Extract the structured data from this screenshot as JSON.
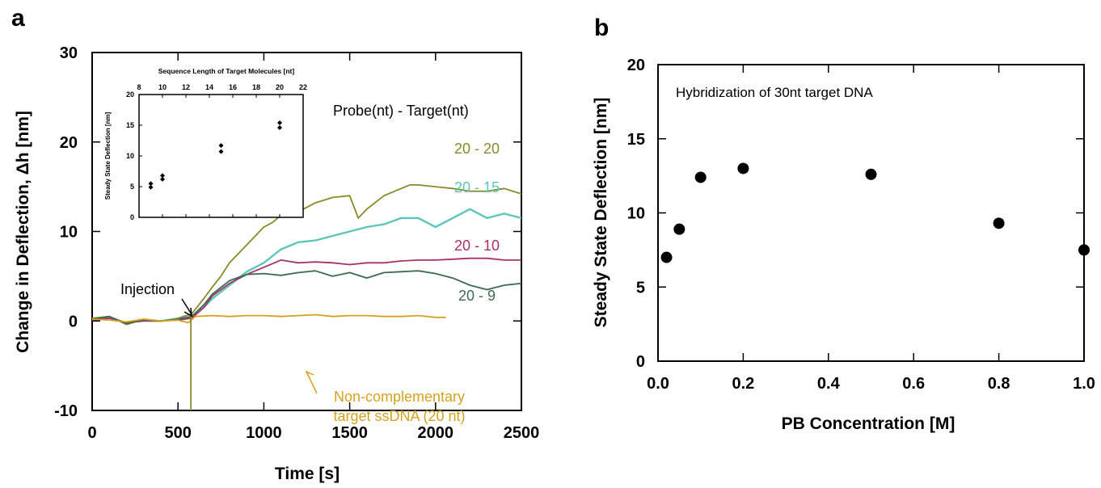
{
  "panels": {
    "a": "a",
    "b": "b"
  },
  "chart_data": [
    {
      "panel": "a",
      "type": "line",
      "title": "",
      "xlabel": "Time [s]",
      "ylabel": "Change in Deflection, Δh [nm]",
      "xlim": [
        0,
        2500
      ],
      "ylim": [
        -10,
        30
      ],
      "xticks": [
        "0",
        "500",
        "1000",
        "1500",
        "2000",
        "2500"
      ],
      "yticks": [
        "-10",
        "0",
        "10",
        "20",
        "30"
      ],
      "header_label": "Probe(nt) - Target(nt)",
      "injection": {
        "label": "Injection",
        "x": 575
      },
      "annotation": "Non-complementary target ssDNA (20 nt)",
      "series": [
        {
          "name": "20 - 20",
          "color": "#8a8a2a",
          "x": [
            0,
            100,
            200,
            300,
            400,
            500,
            580,
            650,
            700,
            750,
            800,
            900,
            1000,
            1050,
            1100,
            1200,
            1300,
            1400,
            1500,
            1550,
            1600,
            1700,
            1800,
            1850,
            1900,
            2000,
            2100,
            2200,
            2300,
            2400,
            2500
          ],
          "y": [
            0.3,
            0.5,
            -0.4,
            0.2,
            0,
            0.3,
            0.8,
            2.5,
            3.8,
            5,
            6.5,
            8.5,
            10.5,
            11,
            11.8,
            12.2,
            13.2,
            13.8,
            14,
            11.5,
            12.5,
            14,
            14.8,
            15.2,
            15.2,
            15,
            14.8,
            14.5,
            14.5,
            14.8,
            14.2
          ]
        },
        {
          "name": "20 - 15",
          "color": "#5cc6bc",
          "x": [
            0,
            100,
            200,
            300,
            400,
            500,
            580,
            650,
            700,
            800,
            900,
            1000,
            1100,
            1200,
            1300,
            1400,
            1500,
            1600,
            1700,
            1800,
            1900,
            2000,
            2100,
            2200,
            2300,
            2400,
            2500
          ],
          "y": [
            0.2,
            0.4,
            -0.2,
            0.1,
            0,
            0.2,
            0.5,
            1.5,
            2.5,
            4,
            5.5,
            6.5,
            8,
            8.8,
            9,
            9.5,
            10,
            10.5,
            10.8,
            11.5,
            11.5,
            10.5,
            11.5,
            12.5,
            11.5,
            12,
            11.5
          ]
        },
        {
          "name": "20 - 10",
          "color": "#a8316a",
          "x": [
            0,
            100,
            200,
            300,
            400,
            500,
            580,
            650,
            700,
            800,
            900,
            1000,
            1100,
            1200,
            1300,
            1400,
            1500,
            1600,
            1700,
            1800,
            1900,
            2000,
            2100,
            2200,
            2300,
            2400,
            2500
          ],
          "y": [
            0.1,
            0.3,
            -0.2,
            0,
            0,
            0.1,
            0.3,
            1.5,
            2.8,
            4.2,
            5.2,
            6,
            6.8,
            6.5,
            6.6,
            6.5,
            6.3,
            6.5,
            6.5,
            6.7,
            6.8,
            6.8,
            6.9,
            7,
            7,
            6.8,
            6.8
          ]
        },
        {
          "name": "20 - 9",
          "color": "#3c6b50",
          "x": [
            0,
            100,
            200,
            300,
            400,
            500,
            580,
            650,
            700,
            800,
            900,
            1000,
            1100,
            1200,
            1300,
            1400,
            1500,
            1600,
            1700,
            1800,
            1900,
            2000,
            2100,
            2200,
            2300,
            2400,
            2500
          ],
          "y": [
            0.2,
            0.5,
            -0.3,
            0.1,
            0,
            0.2,
            0.5,
            1.8,
            3,
            4.5,
            5.2,
            5.3,
            5.1,
            5.4,
            5.6,
            5,
            5.4,
            4.8,
            5.4,
            5.5,
            5.6,
            5.3,
            4.8,
            4,
            3.5,
            4,
            4.2
          ]
        },
        {
          "name": "",
          "color": "#d6a21d",
          "x": [
            0,
            100,
            200,
            300,
            400,
            500,
            560,
            600,
            700,
            800,
            900,
            1000,
            1100,
            1200,
            1300,
            1400,
            1500,
            1600,
            1700,
            1800,
            1900,
            2000,
            2060
          ],
          "y": [
            0.2,
            0.1,
            -0.1,
            0.2,
            0,
            0.1,
            -0.2,
            0.5,
            0.6,
            0.5,
            0.6,
            0.6,
            0.5,
            0.6,
            0.7,
            0.5,
            0.6,
            0.6,
            0.5,
            0.5,
            0.6,
            0.4,
            0.4
          ]
        }
      ]
    },
    {
      "panel": "a-inset",
      "type": "scatter",
      "xlabel": "Sequence Length of Target Molecules [nt]",
      "ylabel": "Steady State Deflection [nm]",
      "xlim": [
        8,
        22
      ],
      "ylim": [
        0,
        20
      ],
      "xticks": [
        "8",
        "10",
        "12",
        "14",
        "16",
        "18",
        "20",
        "22"
      ],
      "yticks": [
        "0",
        "5",
        "10",
        "15",
        "20"
      ],
      "x": [
        9,
        9,
        10,
        10,
        15,
        15,
        20,
        20
      ],
      "y": [
        4.9,
        5.5,
        6.2,
        6.8,
        10.7,
        11.7,
        14.6,
        15.4
      ]
    },
    {
      "panel": "b",
      "type": "scatter",
      "xlabel": "PB Concentration [M]",
      "ylabel": "Steady State Deflection [nm]",
      "annotation": "Hybridization of 30nt target DNA",
      "xlim": [
        0,
        1.0
      ],
      "ylim": [
        0,
        20
      ],
      "xticks": [
        "0.0",
        "0.2",
        "0.4",
        "0.6",
        "0.8",
        "1.0"
      ],
      "yticks": [
        "0",
        "5",
        "10",
        "15",
        "20"
      ],
      "x": [
        0.02,
        0.05,
        0.1,
        0.2,
        0.5,
        0.8,
        1.0
      ],
      "y": [
        7.0,
        8.9,
        12.4,
        13.0,
        12.6,
        9.3,
        7.5
      ]
    }
  ]
}
